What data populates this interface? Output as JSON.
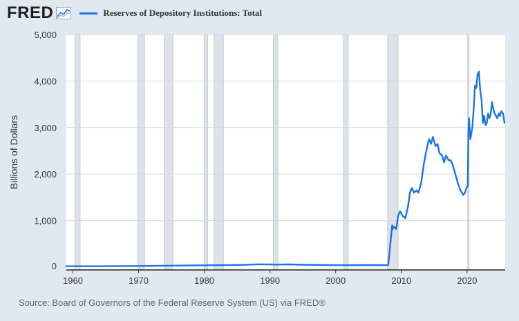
{
  "header": {
    "logo_text": "FRED",
    "logo_icon": "line-chart-icon",
    "series_label": "Reserves of Depository Institutions: Total",
    "series_color": "#1a73e8"
  },
  "source": "Source: Board of Governors of the Federal Reserve System (US) via FRED®",
  "chart_data": {
    "type": "line",
    "title": "Reserves of Depository Institutions: Total",
    "xlabel": "",
    "ylabel": "Billions of Dollars",
    "xlim": [
      1959,
      2025.8
    ],
    "ylim": [
      -60,
      5000
    ],
    "yticks": [
      0,
      1000,
      2000,
      3000,
      4000,
      5000
    ],
    "ytick_labels": [
      "0",
      "1,000",
      "2,000",
      "3,000",
      "4,000",
      "5,000"
    ],
    "xticks": [
      1960,
      1970,
      1980,
      1990,
      2000,
      2010,
      2020
    ],
    "xtick_labels": [
      "1960",
      "1970",
      "1980",
      "1990",
      "2000",
      "2010",
      "2020"
    ],
    "grid": true,
    "recessions": [
      [
        1960.3,
        1961.1
      ],
      [
        1969.9,
        1970.9
      ],
      [
        1973.9,
        1975.2
      ],
      [
        1980.0,
        1980.5
      ],
      [
        1981.5,
        1982.9
      ],
      [
        1990.5,
        1991.2
      ],
      [
        2001.2,
        2001.9
      ],
      [
        2007.9,
        2009.5
      ],
      [
        2020.1,
        2020.3
      ]
    ],
    "series": [
      {
        "name": "Reserves of Depository Institutions: Total",
        "color": "#1a73e8",
        "x": [
          1959,
          1965,
          1970,
          1975,
          1980,
          1984,
          1986,
          1988,
          1990,
          1991,
          1993,
          1995,
          1998,
          2000,
          2005,
          2008.0,
          2008.6,
          2008.7,
          2008.9,
          2009.2,
          2009.5,
          2009.8,
          2010.2,
          2010.6,
          2011.0,
          2011.3,
          2011.6,
          2011.9,
          2012.3,
          2012.6,
          2013.0,
          2013.4,
          2013.8,
          2014.2,
          2014.5,
          2014.8,
          2015.2,
          2015.5,
          2015.8,
          2016.2,
          2016.5,
          2016.8,
          2017.2,
          2017.5,
          2017.8,
          2018.2,
          2018.6,
          2019.0,
          2019.4,
          2019.7,
          2019.9,
          2020.1,
          2020.2,
          2020.3,
          2020.5,
          2020.8,
          2021.0,
          2021.2,
          2021.4,
          2021.6,
          2021.8,
          2022.0,
          2022.2,
          2022.4,
          2022.6,
          2022.8,
          2023.0,
          2023.2,
          2023.4,
          2023.6,
          2023.8,
          2024.0,
          2024.2,
          2024.4,
          2024.6,
          2024.8,
          2025.0,
          2025.2,
          2025.5,
          2025.7
        ],
        "values": [
          18,
          20,
          25,
          32,
          40,
          45,
          48,
          60,
          58,
          55,
          58,
          52,
          45,
          42,
          44,
          42,
          900,
          820,
          870,
          820,
          1100,
          1200,
          1100,
          1050,
          1300,
          1600,
          1700,
          1600,
          1650,
          1600,
          1800,
          2200,
          2500,
          2750,
          2650,
          2800,
          2600,
          2650,
          2450,
          2400,
          2250,
          2400,
          2300,
          2300,
          2200,
          2000,
          1800,
          1650,
          1550,
          1600,
          1700,
          1750,
          2900,
          3200,
          2750,
          3000,
          3400,
          3900,
          3850,
          4150,
          4200,
          3800,
          3600,
          3100,
          3250,
          3050,
          3100,
          3300,
          3200,
          3300,
          3550,
          3400,
          3300,
          3250,
          3200,
          3300,
          3250,
          3350,
          3300,
          3100
        ]
      }
    ]
  }
}
